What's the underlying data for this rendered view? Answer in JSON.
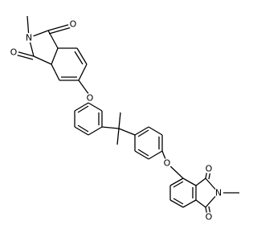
{
  "top_imide": {
    "nitrogen": "N",
    "oxygen_upper": "O",
    "oxygen_lower": "O"
  },
  "ether_oxygen_1": "O",
  "ether_oxygen_2": "O",
  "bottom_imide": {
    "nitrogen": "N",
    "oxygen_upper": "O",
    "oxygen_lower": "O"
  }
}
